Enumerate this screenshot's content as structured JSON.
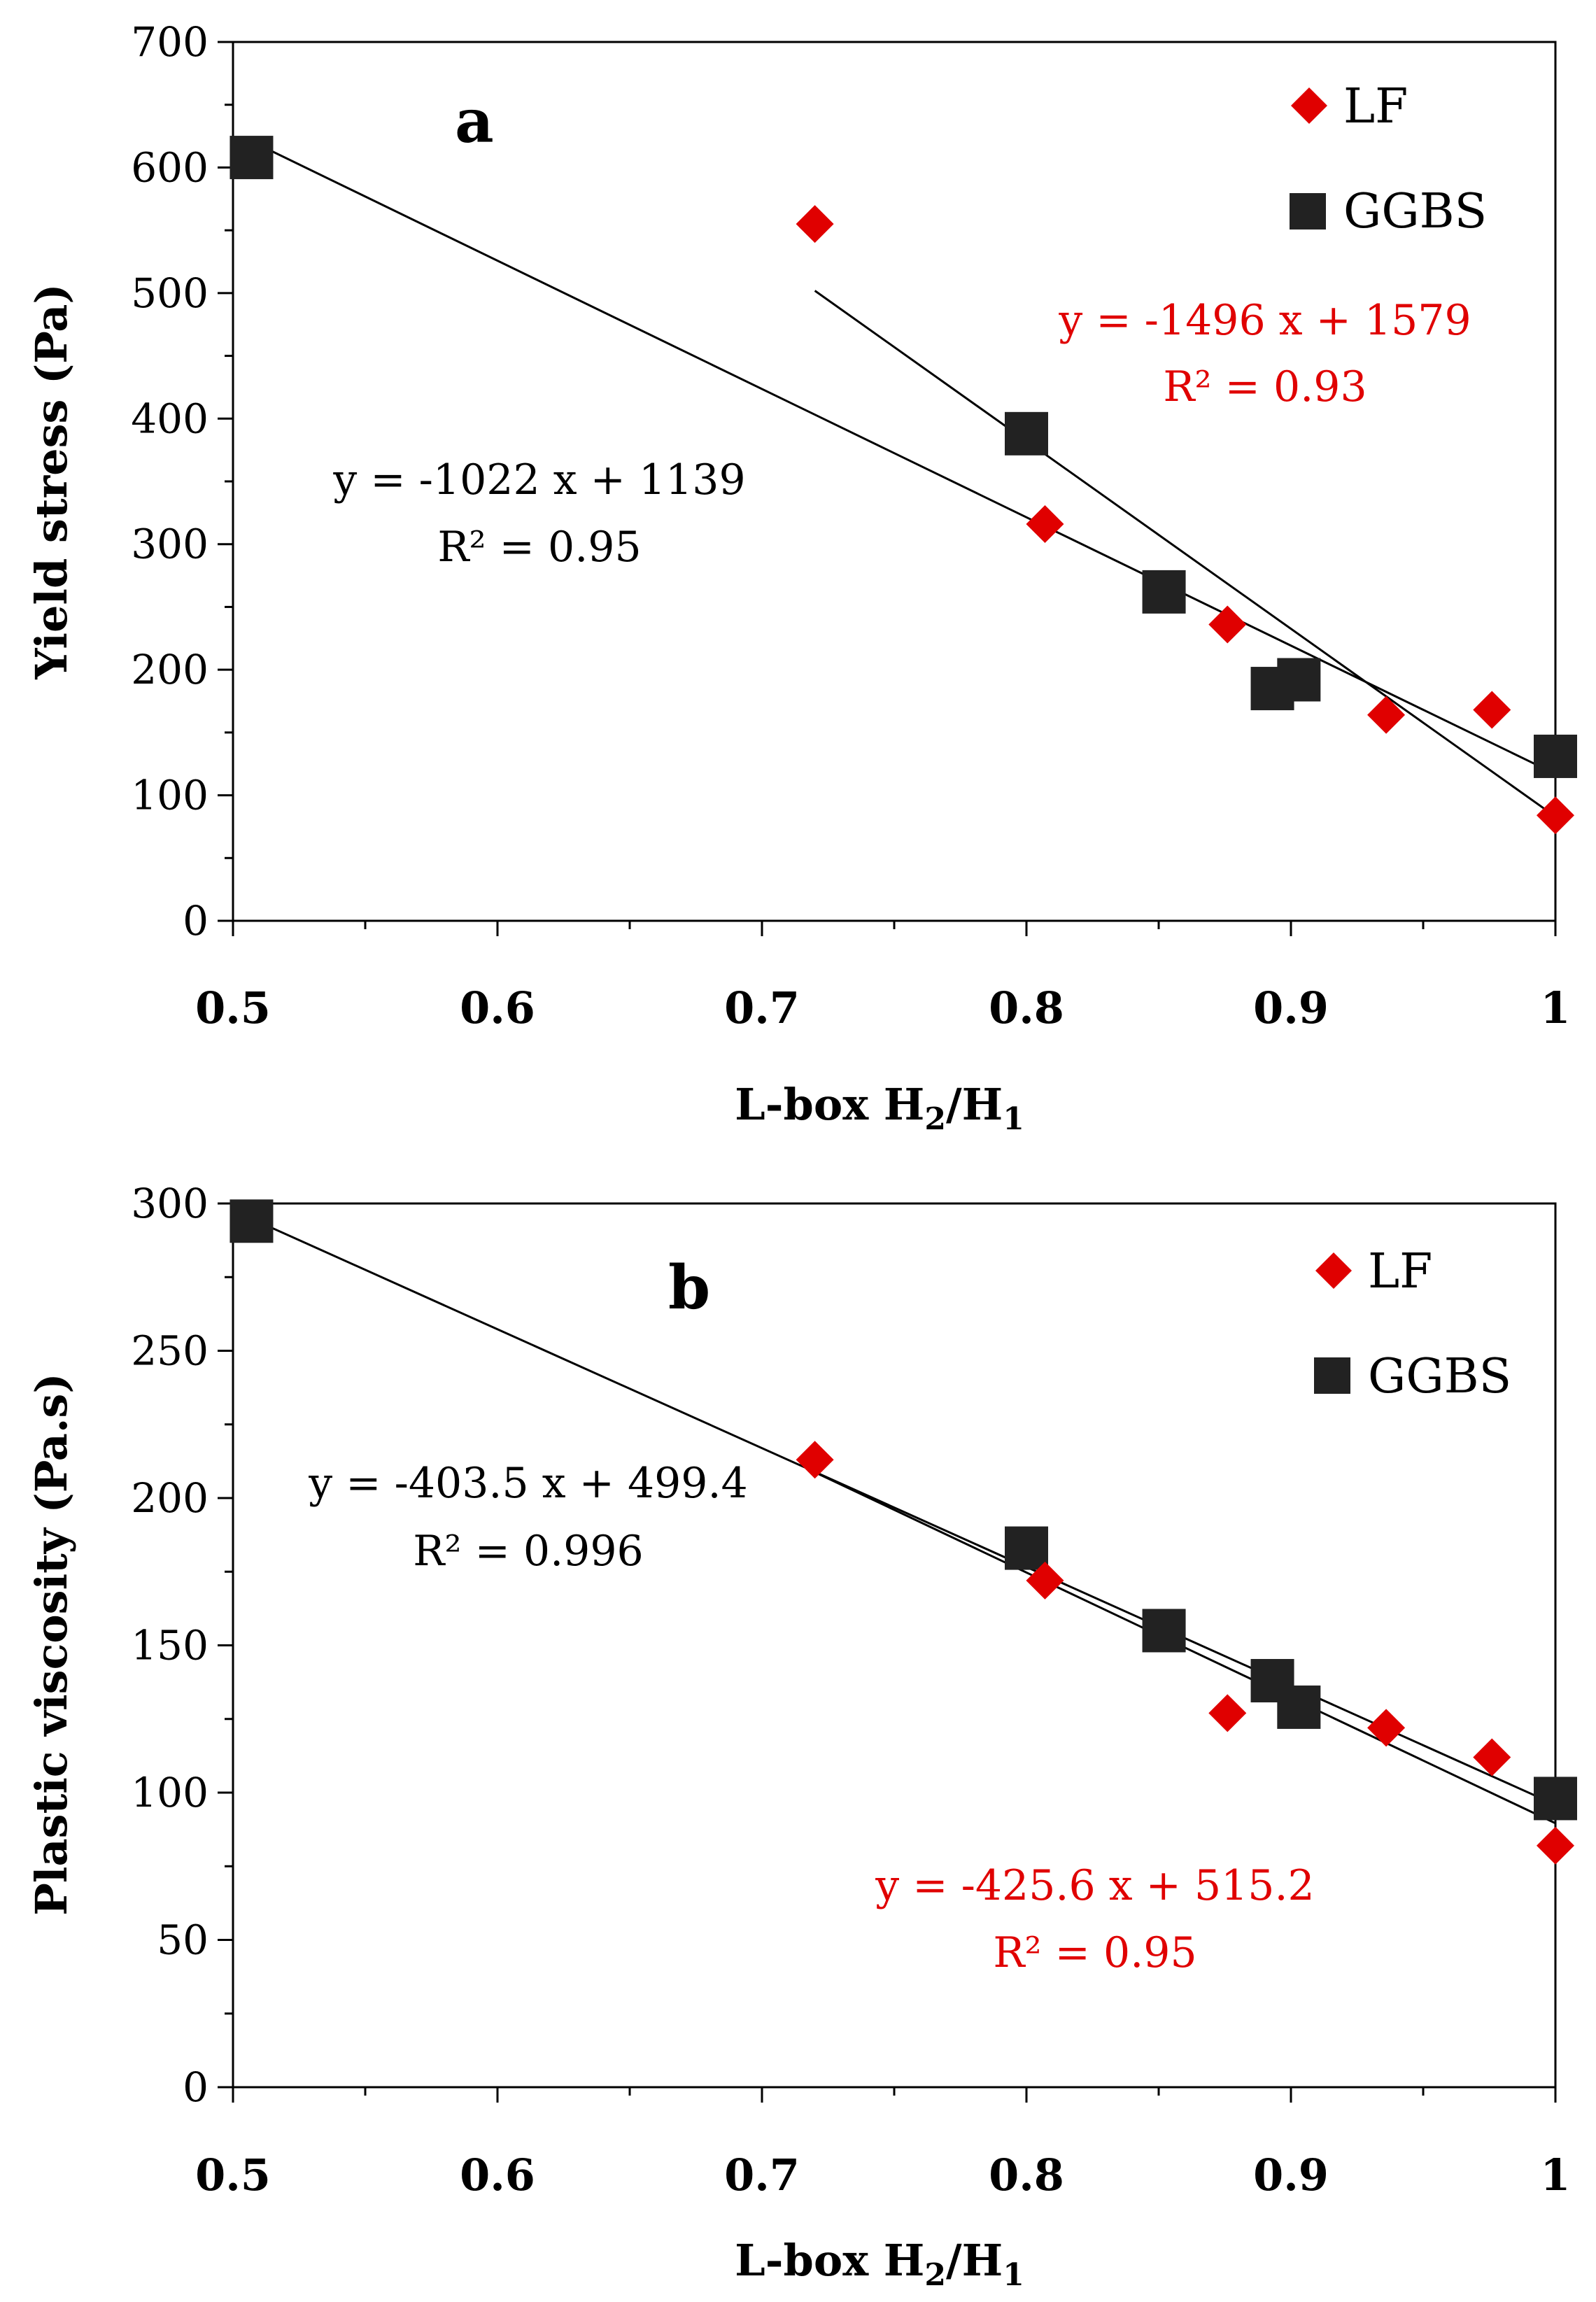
{
  "charts": [
    {
      "panel": "a",
      "type": "scatter",
      "xlabel": {
        "main": "L-box H",
        "sub1": "2",
        "slash": "/H",
        "sub2": "1"
      },
      "ylabel": "Yield stress (Pa)",
      "xlim": [
        0.5,
        1.0
      ],
      "ylim": [
        0,
        700
      ],
      "xticks": [
        "0.5",
        "0.6",
        "0.7",
        "0.8",
        "0.9",
        "1"
      ],
      "xtick_values": [
        0.5,
        0.6,
        0.7,
        0.8,
        0.9,
        1.0
      ],
      "yticks": [
        "0",
        "100",
        "200",
        "300",
        "400",
        "500",
        "600",
        "700"
      ],
      "ytick_values": [
        0,
        100,
        200,
        300,
        400,
        500,
        600,
        700
      ],
      "legend": {
        "position": "top-right",
        "entries": [
          "LF",
          "GGBS"
        ]
      },
      "series": [
        {
          "name": "LF",
          "marker": "diamond",
          "color": "#e00000",
          "points": [
            [
              0.72,
              555
            ],
            [
              0.807,
              316
            ],
            [
              0.876,
              236
            ],
            [
              0.936,
              164
            ],
            [
              0.976,
              168
            ],
            [
              1.0,
              84
            ]
          ],
          "fit": {
            "slope": -1496,
            "intercept": 1579,
            "x_range": [
              0.72,
              1.0
            ]
          },
          "equation": "y = -1496 x + 1579",
          "r2": "R² = 0.93",
          "equation_color": "#e00000"
        },
        {
          "name": "GGBS",
          "marker": "square",
          "color": "#222222",
          "points": [
            [
              0.507,
              608
            ],
            [
              0.8,
              388
            ],
            [
              0.852,
              262
            ],
            [
              0.893,
              185
            ],
            [
              0.903,
              192
            ],
            [
              1.0,
              131
            ]
          ],
          "fit": {
            "slope": -1022,
            "intercept": 1139,
            "x_range": [
              0.507,
              1.0
            ]
          },
          "equation": "y = -1022 x + 1139",
          "r2": "R² = 0.95",
          "equation_color": "#000000"
        }
      ]
    },
    {
      "panel": "b",
      "type": "scatter",
      "xlabel": {
        "main": "L-box H",
        "sub1": "2",
        "slash": "/H",
        "sub2": "1"
      },
      "ylabel": "Plastic viscosity (Pa.s)",
      "xlim": [
        0.5,
        1.0
      ],
      "ylim": [
        0,
        300
      ],
      "xticks": [
        "0.5",
        "0.6",
        "0.7",
        "0.8",
        "0.9",
        "1"
      ],
      "xtick_values": [
        0.5,
        0.6,
        0.7,
        0.8,
        0.9,
        1.0
      ],
      "yticks": [
        "0",
        "50",
        "100",
        "150",
        "200",
        "250",
        "300"
      ],
      "ytick_values": [
        0,
        50,
        100,
        150,
        200,
        250,
        300
      ],
      "legend": {
        "position": "top-right",
        "entries": [
          "LF",
          "GGBS"
        ]
      },
      "series": [
        {
          "name": "LF",
          "marker": "diamond",
          "color": "#e00000",
          "points": [
            [
              0.72,
              213
            ],
            [
              0.807,
              172
            ],
            [
              0.876,
              127
            ],
            [
              0.936,
              122
            ],
            [
              0.976,
              112
            ],
            [
              1.0,
              82
            ]
          ],
          "fit": {
            "slope": -425.6,
            "intercept": 515.2,
            "x_range": [
              0.72,
              1.0
            ]
          },
          "equation": "y = -425.6 x + 515.2",
          "r2": "R² = 0.95",
          "equation_color": "#e00000"
        },
        {
          "name": "GGBS",
          "marker": "square",
          "color": "#222222",
          "points": [
            [
              0.507,
              294
            ],
            [
              0.8,
              183
            ],
            [
              0.852,
              155
            ],
            [
              0.893,
              138
            ],
            [
              0.903,
              129
            ],
            [
              1.0,
              98
            ]
          ],
          "fit": {
            "slope": -403.5,
            "intercept": 499.4,
            "x_range": [
              0.507,
              1.0
            ]
          },
          "equation": "y = -403.5 x + 499.4",
          "r2": "R² = 0.996",
          "equation_color": "#000000"
        }
      ]
    }
  ]
}
